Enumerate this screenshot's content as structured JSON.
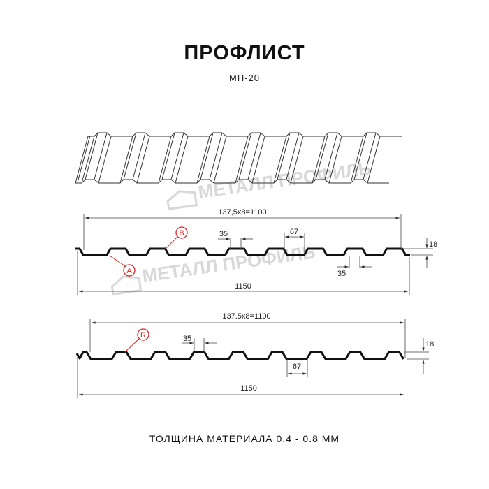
{
  "title": "ПРОФЛИСТ",
  "subtitle": "МП-20",
  "footer": "ТОЛЩИНА МАТЕРИАЛА 0.4 - 0.8 ММ",
  "watermark": "МЕТАЛЛ ПРОФИЛЬ",
  "colors": {
    "profile": "#111111",
    "marker": "#e02020",
    "watermark": "#d8d8d8"
  },
  "profile_a": {
    "pitch_label": "137,5x8=1100",
    "width_label": "1150",
    "rib_top_label": "35",
    "rib_gap_label": "67",
    "height_label": "18",
    "rib_bottom_label": "35",
    "marker_a": "A",
    "marker_b": "B"
  },
  "profile_b": {
    "pitch_label": "137.5x8=1100",
    "width_label": "1150",
    "rib_top_label": "35",
    "rib_gap_label": "67",
    "height_label": "18",
    "marker_r": "R"
  }
}
